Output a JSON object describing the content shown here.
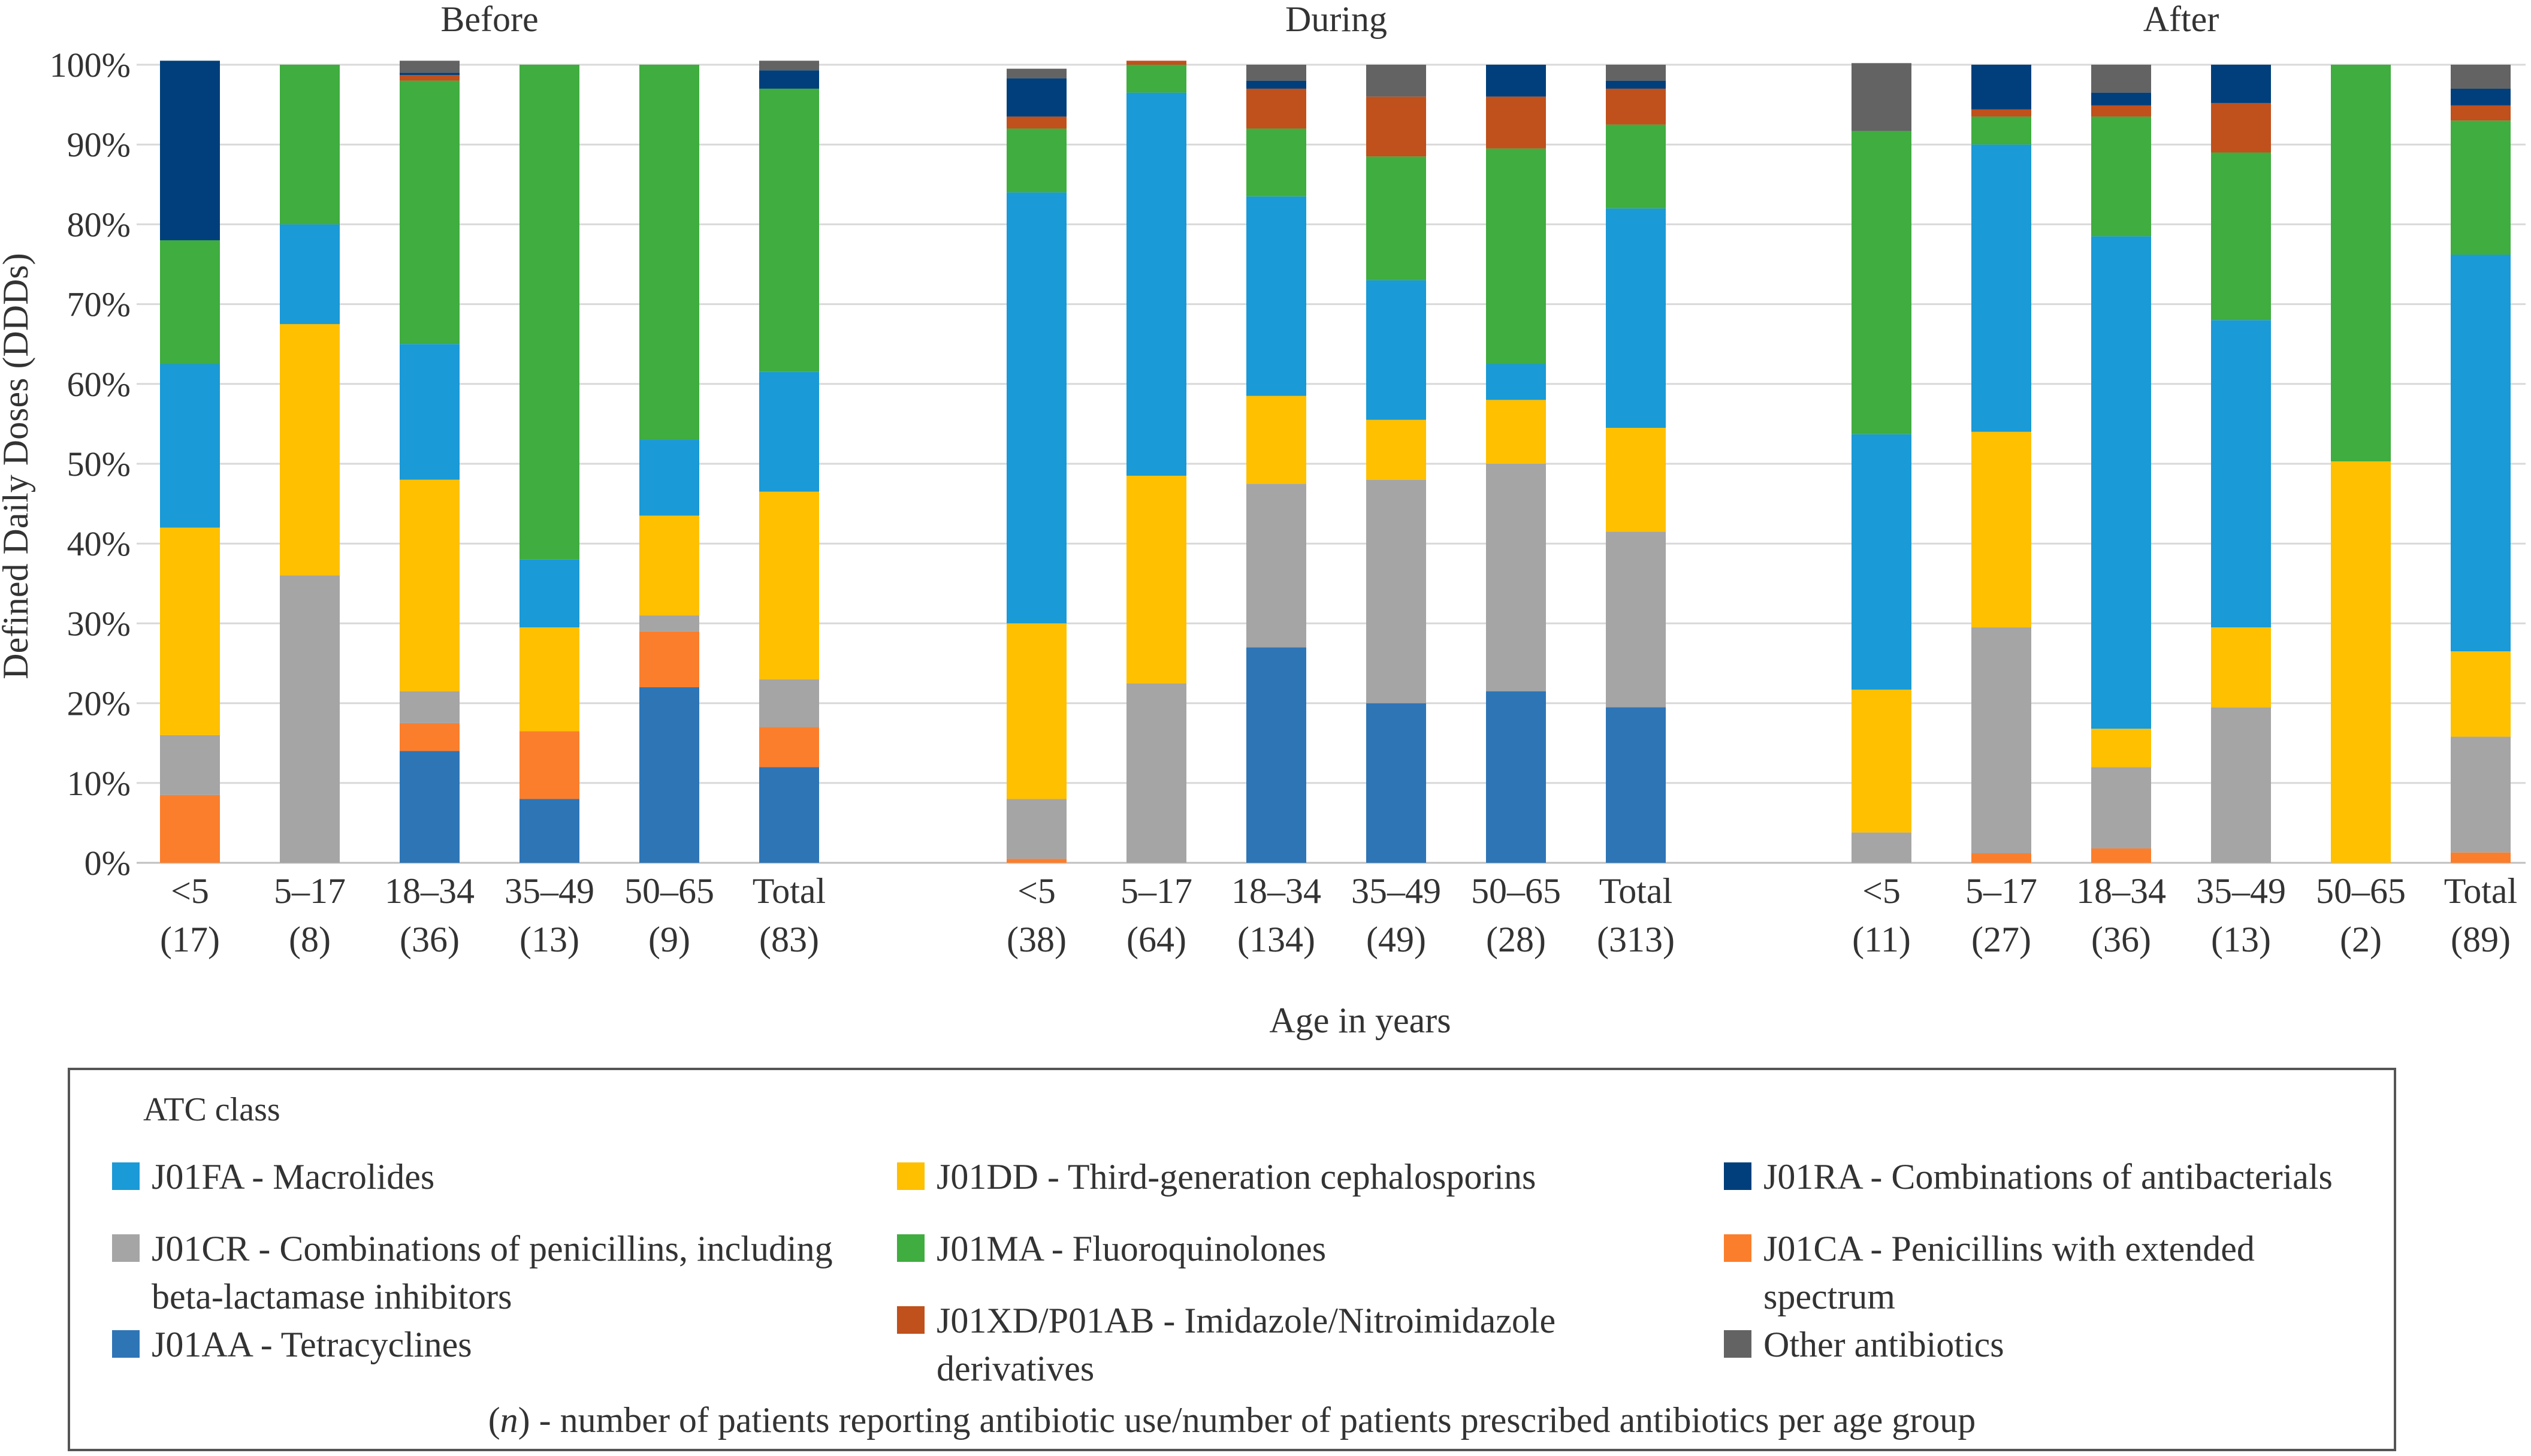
{
  "chart_data": {
    "type": "bar",
    "stacked": true,
    "normalized": true,
    "ylabel": "Defined Daily Doses (DDDs)",
    "xlabel": "Age in years",
    "ylim": [
      0,
      100
    ],
    "yticks": [
      "0%",
      "10%",
      "20%",
      "30%",
      "40%",
      "50%",
      "60%",
      "70%",
      "80%",
      "90%",
      "100%"
    ],
    "panels": [
      {
        "title": "Before",
        "categories": [
          {
            "age": "<5",
            "n": "(17)"
          },
          {
            "age": "5–17",
            "n": "(8)"
          },
          {
            "age": "18–34",
            "n": "(36)"
          },
          {
            "age": "35–49",
            "n": "(13)"
          },
          {
            "age": "50–65",
            "n": "(9)"
          },
          {
            "age": "Total",
            "n": "(83)"
          }
        ]
      },
      {
        "title": "During",
        "categories": [
          {
            "age": "<5",
            "n": "(38)"
          },
          {
            "age": "5–17",
            "n": "(64)"
          },
          {
            "age": "18–34",
            "n": "(134)"
          },
          {
            "age": "35–49",
            "n": "(49)"
          },
          {
            "age": "50–65",
            "n": "(28)"
          },
          {
            "age": "Total",
            "n": "(313)"
          }
        ]
      },
      {
        "title": "After",
        "categories": [
          {
            "age": "<5",
            "n": "(11)"
          },
          {
            "age": "5–17",
            "n": "(27)"
          },
          {
            "age": "18–34",
            "n": "(36)"
          },
          {
            "age": "35–49",
            "n": "(13)"
          },
          {
            "age": "50–65",
            "n": "(2)"
          },
          {
            "age": "Total",
            "n": "(89)"
          }
        ]
      }
    ],
    "series": [
      {
        "key": "J01AA",
        "name": "J01AA - Tetracyclines",
        "color": "#2e75b6",
        "values": [
          [
            0,
            0,
            14,
            8,
            22,
            12
          ],
          [
            0,
            0,
            27,
            20,
            21.5,
            19.5
          ],
          [
            0,
            0,
            0,
            0,
            0,
            0
          ]
        ]
      },
      {
        "key": "J01CA",
        "name": "J01CA - Penicillins with extended spectrum",
        "color": "#fb7e2c",
        "values": [
          [
            8.5,
            0,
            3.5,
            8.5,
            7,
            5
          ],
          [
            0.5,
            0,
            0,
            0,
            0,
            0
          ],
          [
            0,
            1.2,
            1.8,
            0,
            0,
            1.3
          ]
        ]
      },
      {
        "key": "J01CR",
        "name": "J01CR - Combinations of penicillins, including beta-lactamase inhibitors",
        "color": "#a5a5a5",
        "values": [
          [
            7.5,
            36,
            4,
            0,
            2,
            6
          ],
          [
            7.5,
            22.5,
            20.5,
            28,
            28.5,
            22
          ],
          [
            3.8,
            28.3,
            10.2,
            19.5,
            0,
            14.5
          ]
        ]
      },
      {
        "key": "J01DD",
        "name": "J01DD - Third-generation cephalosporins",
        "color": "#ffc000",
        "values": [
          [
            26,
            31.5,
            26.5,
            13,
            12.5,
            23.5
          ],
          [
            22,
            26,
            11,
            7.5,
            8,
            13
          ],
          [
            17.9,
            24.5,
            4.8,
            10,
            50.3,
            10.7
          ]
        ]
      },
      {
        "key": "J01FA",
        "name": "J01FA - Macrolides",
        "color": "#1a9ad6",
        "values": [
          [
            20.5,
            12.5,
            17,
            8.5,
            9.5,
            15
          ],
          [
            54,
            48,
            25,
            17.5,
            4.5,
            27.5
          ],
          [
            32,
            36,
            61.7,
            38.5,
            0,
            49.7
          ]
        ]
      },
      {
        "key": "J01MA",
        "name": "J01MA - Fluoroquinolones",
        "color": "#3fad3f",
        "values": [
          [
            15.5,
            20,
            33,
            62,
            47,
            35.5
          ],
          [
            8,
            3.5,
            8.5,
            15.5,
            27,
            10.5
          ],
          [
            38,
            3.5,
            15,
            21,
            49.7,
            16.8
          ]
        ]
      },
      {
        "key": "J01XD",
        "name": "J01XD/P01AB - Imidazole/Nitroimidazole derivatives",
        "color": "#c0501c",
        "values": [
          [
            0,
            0,
            0.7,
            0,
            0,
            0
          ],
          [
            1.5,
            0.5,
            5,
            7.5,
            6.5,
            4.5
          ],
          [
            0,
            0.9,
            1.4,
            6.2,
            0,
            1.9
          ]
        ]
      },
      {
        "key": "J01RA",
        "name": "J01RA - Combinations of antibacterials",
        "color": "#003f7b",
        "values": [
          [
            22.5,
            0,
            0.3,
            0,
            0,
            2.3
          ],
          [
            4.8,
            0,
            1,
            0,
            4,
            1
          ],
          [
            0,
            5.6,
            1.6,
            4.8,
            0,
            2.1
          ]
        ]
      },
      {
        "key": "OTHER",
        "name": "Other antibiotics",
        "color": "#636363",
        "values": [
          [
            0,
            0,
            1.5,
            0,
            0,
            1.2
          ],
          [
            1.2,
            0,
            2,
            4,
            0,
            2
          ],
          [
            8.5,
            0,
            3.5,
            0,
            0,
            3
          ]
        ]
      }
    ]
  },
  "legend": {
    "title": "ATC class",
    "note_n": "n",
    "note_text": " - number of patients reporting antibiotic use/number of patients prescribed antibiotics per age group"
  }
}
